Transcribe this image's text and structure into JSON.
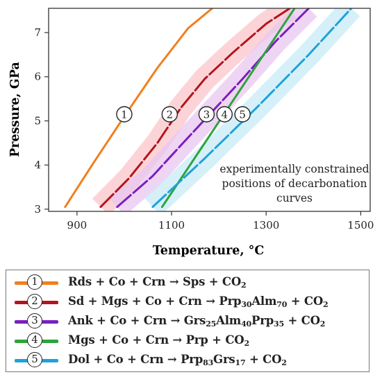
{
  "chart_data": {
    "type": "line",
    "xlabel": "Temperature, °C",
    "ylabel": "Pressure, GPa",
    "xlim": [
      840,
      1520
    ],
    "ylim": [
      2.95,
      7.55
    ],
    "xticks": [
      "900",
      "1100",
      "1300",
      "1500"
    ],
    "yticks": [
      "3",
      "4",
      "5",
      "6",
      "7"
    ],
    "grid": false,
    "annotation": "experimentally constrained positions of decarbonation curves",
    "series": [
      {
        "id": "1",
        "name": "Rds + Co + Crn → Sps + CO2",
        "color": "#f07f1f",
        "dash": "solid",
        "band": false,
        "x": [
          875,
          935,
          1000,
          1070,
          1135,
          1186
        ],
        "y": [
          3.05,
          4.05,
          5.1,
          6.2,
          7.1,
          7.55
        ],
        "marker": {
          "label": "1",
          "x": 1000,
          "y": 5.15
        }
      },
      {
        "id": "2",
        "name": "Sd + Mgs + Co + Crn → Prp30Alm70 + CO2",
        "color": "#b2151c",
        "dash": "dashed",
        "band": true,
        "bandColor": "#fbc5cb",
        "x": [
          950,
          1010,
          1070,
          1120,
          1170,
          1230,
          1300,
          1350
        ],
        "y": [
          3.05,
          3.7,
          4.5,
          5.3,
          5.95,
          6.55,
          7.2,
          7.55
        ],
        "marker": {
          "label": "2",
          "x": 1096,
          "y": 5.15
        }
      },
      {
        "id": "3",
        "name": "Ank + Co + Crn → Grs25Alm40Prp35 + CO2",
        "color": "#7a1fbe",
        "dash": "dashed",
        "band": true,
        "bandColor": "#eac7f0",
        "x": [
          985,
          1060,
          1120,
          1185,
          1250,
          1320,
          1390
        ],
        "y": [
          3.05,
          3.75,
          4.45,
          5.2,
          5.95,
          6.8,
          7.55
        ],
        "marker": {
          "label": "3",
          "x": 1174,
          "y": 5.15
        }
      },
      {
        "id": "4",
        "name": "Mgs + Co + Crn → Prp + CO2",
        "color": "#2da43a",
        "dash": "solid",
        "band": false,
        "x": [
          1080,
          1360
        ],
        "y": [
          3.05,
          7.55
        ],
        "marker": {
          "label": "4",
          "x": 1212,
          "y": 5.15
        }
      },
      {
        "id": "5",
        "name": "Dol + Co + Crn → Prp83Grs17 + CO2",
        "color": "#1ea2d8",
        "dash": "dashed",
        "band": true,
        "bandColor": "#c8ebf7",
        "x": [
          1060,
          1170,
          1280,
          1390,
          1480
        ],
        "y": [
          3.05,
          4.15,
          5.3,
          6.5,
          7.55
        ],
        "marker": {
          "label": "5",
          "x": 1250,
          "y": 5.15
        }
      }
    ]
  },
  "legend": {
    "items": [
      {
        "num": "1",
        "color": "#f07f1f",
        "parts": [
          [
            "Rds + Co + Crn → Sps + CO",
            ""
          ],
          [
            "2",
            "sub"
          ]
        ]
      },
      {
        "num": "2",
        "color": "#b2151c",
        "parts": [
          [
            "Sd + Mgs + Co + Crn → Prp",
            ""
          ],
          [
            "30",
            "sub"
          ],
          [
            "Alm",
            ""
          ],
          [
            "70",
            "sub"
          ],
          [
            " + CO",
            ""
          ],
          [
            "2",
            "sub"
          ]
        ]
      },
      {
        "num": "3",
        "color": "#7a1fbe",
        "parts": [
          [
            "Ank + Co + Crn → Grs",
            ""
          ],
          [
            "25",
            "sub"
          ],
          [
            "Alm",
            ""
          ],
          [
            "40",
            "sub"
          ],
          [
            "Prp",
            ""
          ],
          [
            "35",
            "sub"
          ],
          [
            " + CO",
            ""
          ],
          [
            "2",
            "sub"
          ]
        ]
      },
      {
        "num": "4",
        "color": "#2da43a",
        "parts": [
          [
            "Mgs + Co + Crn → Prp + CO",
            ""
          ],
          [
            "2",
            "sub"
          ]
        ]
      },
      {
        "num": "5",
        "color": "#1ea2d8",
        "parts": [
          [
            "Dol + Co + Crn → Prp",
            ""
          ],
          [
            "83",
            "sub"
          ],
          [
            "Grs",
            ""
          ],
          [
            "17",
            "sub"
          ],
          [
            " + CO",
            ""
          ],
          [
            "2",
            "sub"
          ]
        ]
      }
    ]
  }
}
